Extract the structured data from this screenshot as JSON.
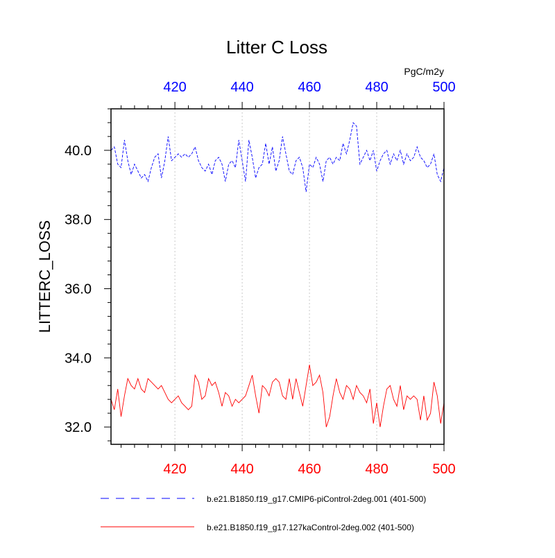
{
  "chart_data": {
    "type": "line",
    "title": "Litter C Loss",
    "units": "PgC/m2y",
    "ylabel": "LITTERC_LOSS",
    "xlabel": "",
    "xlim": [
      401,
      500
    ],
    "ylim": [
      31.5,
      41.2
    ],
    "xticks": [
      420,
      440,
      460,
      480,
      500
    ],
    "xtick_labels": [
      "420",
      "440",
      "460",
      "480",
      "500"
    ],
    "yticks": [
      32.0,
      34.0,
      36.0,
      38.0,
      40.0
    ],
    "ytick_labels": [
      "32.0",
      "34.0",
      "36.0",
      "38.0",
      "40.0"
    ],
    "grid": "vertical dotted at x ticks",
    "top_axis_color": "#0000ff",
    "bottom_axis_color": "#ff0000",
    "x": [
      401,
      402,
      403,
      404,
      405,
      406,
      407,
      408,
      409,
      410,
      411,
      412,
      413,
      414,
      415,
      416,
      417,
      418,
      419,
      420,
      421,
      422,
      423,
      424,
      425,
      426,
      427,
      428,
      429,
      430,
      431,
      432,
      433,
      434,
      435,
      436,
      437,
      438,
      439,
      440,
      441,
      442,
      443,
      444,
      445,
      446,
      447,
      448,
      449,
      450,
      451,
      452,
      453,
      454,
      455,
      456,
      457,
      458,
      459,
      460,
      461,
      462,
      463,
      464,
      465,
      466,
      467,
      468,
      469,
      470,
      471,
      472,
      473,
      474,
      475,
      476,
      477,
      478,
      479,
      480,
      481,
      482,
      483,
      484,
      485,
      486,
      487,
      488,
      489,
      490,
      491,
      492,
      493,
      494,
      495,
      496,
      497,
      498,
      499,
      500
    ],
    "series": [
      {
        "name": "b.e21.B1850.f19_g17.CMIP6-piControl-2deg.001 (401-500)",
        "color": "#0000ff",
        "dash": "dashed",
        "values": [
          40.0,
          40.1,
          39.6,
          39.5,
          40.3,
          39.7,
          39.3,
          39.6,
          39.4,
          39.2,
          39.3,
          39.1,
          39.5,
          39.8,
          39.9,
          39.2,
          39.7,
          40.4,
          39.7,
          39.8,
          39.9,
          39.8,
          39.9,
          39.8,
          39.9,
          40.1,
          39.7,
          39.5,
          39.4,
          39.6,
          39.3,
          39.7,
          39.8,
          39.6,
          39.1,
          39.6,
          39.7,
          39.5,
          40.3,
          39.7,
          39.1,
          40.3,
          39.8,
          39.2,
          39.5,
          39.6,
          40.2,
          39.6,
          40.1,
          39.4,
          39.7,
          40.4,
          39.9,
          39.4,
          39.3,
          39.7,
          39.8,
          39.5,
          38.8,
          39.6,
          39.5,
          39.8,
          39.6,
          39.1,
          39.7,
          39.8,
          39.6,
          39.8,
          39.7,
          40.2,
          39.9,
          40.3,
          40.8,
          40.7,
          39.6,
          39.8,
          40.0,
          39.7,
          40.0,
          39.4,
          39.7,
          39.9,
          40.0,
          39.6,
          39.9,
          39.7,
          40.0,
          39.6,
          39.9,
          39.7,
          39.8,
          40.1,
          39.8,
          39.7,
          39.5,
          39.6,
          39.9,
          39.3,
          39.1,
          39.5
        ]
      },
      {
        "name": "b.e21.B1850.f19_g17.127kaControl-2deg.002 (401-500)",
        "color": "#ff0000",
        "dash": "solid",
        "values": [
          32.8,
          32.5,
          33.1,
          32.3,
          32.9,
          33.4,
          33.2,
          33.1,
          33.4,
          33.1,
          33.0,
          33.4,
          33.3,
          33.2,
          33.1,
          33.2,
          33.0,
          32.8,
          32.7,
          32.8,
          32.9,
          32.7,
          32.6,
          32.5,
          32.6,
          33.5,
          33.3,
          32.8,
          32.9,
          33.4,
          33.2,
          33.3,
          33.0,
          32.6,
          33.0,
          32.9,
          32.6,
          32.8,
          32.7,
          32.8,
          32.9,
          33.2,
          33.5,
          32.9,
          32.4,
          33.2,
          33.1,
          32.9,
          33.3,
          33.4,
          33.3,
          32.9,
          32.8,
          33.4,
          32.8,
          33.4,
          33.0,
          32.6,
          33.2,
          33.8,
          33.2,
          33.3,
          33.5,
          33.0,
          32.0,
          32.3,
          32.9,
          33.4,
          33.0,
          32.8,
          33.2,
          33.1,
          32.8,
          33.2,
          33.0,
          32.9,
          32.7,
          33.1,
          32.1,
          32.7,
          32.0,
          32.6,
          33.1,
          33.2,
          32.8,
          32.6,
          33.2,
          32.5,
          32.9,
          32.8,
          32.9,
          32.8,
          32.2,
          32.9,
          32.2,
          32.4,
          33.3,
          32.9,
          32.1,
          32.7
        ]
      }
    ]
  }
}
